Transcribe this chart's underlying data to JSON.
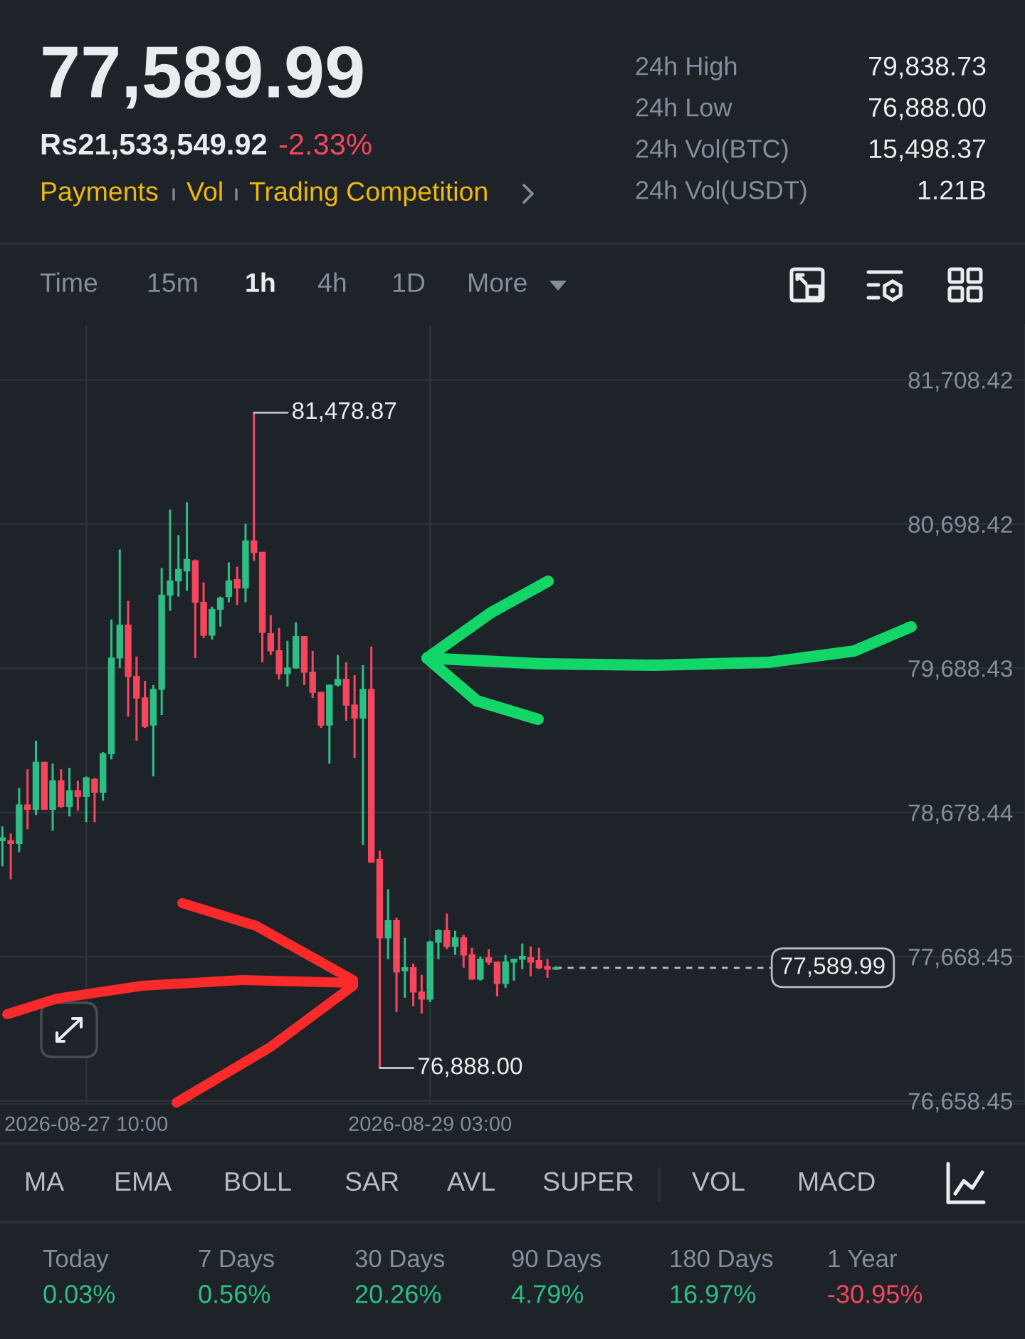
{
  "chart_data": {
    "type": "candlestick",
    "x": [
      "2026-08-27T00:00",
      "2026-08-27T01:00",
      "2026-08-27T02:00",
      "2026-08-27T03:00",
      "2026-08-27T04:00",
      "2026-08-27T05:00",
      "2026-08-27T06:00",
      "2026-08-27T07:00",
      "2026-08-27T08:00",
      "2026-08-27T09:00",
      "2026-08-27T10:00",
      "2026-08-27T11:00",
      "2026-08-27T12:00",
      "2026-08-27T13:00",
      "2026-08-27T14:00",
      "2026-08-27T15:00",
      "2026-08-27T16:00",
      "2026-08-27T17:00",
      "2026-08-27T18:00",
      "2026-08-27T19:00",
      "2026-08-27T20:00",
      "2026-08-27T21:00",
      "2026-08-27T22:00",
      "2026-08-27T23:00",
      "2026-08-28T00:00",
      "2026-08-28T01:00",
      "2026-08-28T02:00",
      "2026-08-28T03:00",
      "2026-08-28T04:00",
      "2026-08-28T05:00",
      "2026-08-28T06:00",
      "2026-08-28T07:00",
      "2026-08-28T08:00",
      "2026-08-28T09:00",
      "2026-08-28T10:00",
      "2026-08-28T11:00",
      "2026-08-28T12:00",
      "2026-08-28T13:00",
      "2026-08-28T14:00",
      "2026-08-28T15:00",
      "2026-08-28T16:00",
      "2026-08-28T17:00",
      "2026-08-28T18:00",
      "2026-08-28T19:00",
      "2026-08-28T20:00",
      "2026-08-28T21:00",
      "2026-08-28T22:00",
      "2026-08-28T23:00",
      "2026-08-29T00:00",
      "2026-08-29T01:00",
      "2026-08-29T02:00",
      "2026-08-29T03:00",
      "2026-08-29T04:00",
      "2026-08-29T05:00",
      "2026-08-29T06:00",
      "2026-08-29T07:00",
      "2026-08-29T08:00",
      "2026-08-29T09:00",
      "2026-08-29T10:00",
      "2026-08-29T11:00",
      "2026-08-29T12:00",
      "2026-08-29T13:00",
      "2026-08-29T14:00",
      "2026-08-29T15:00",
      "2026-08-29T16:00",
      "2026-08-29T17:00",
      "2026-08-29T18:00"
    ],
    "ohlc": [
      [
        78480,
        78580,
        78300,
        78500
      ],
      [
        78480,
        78530,
        78210,
        78460
      ],
      [
        78460,
        78850,
        78400,
        78730
      ],
      [
        78730,
        78980,
        78560,
        78700
      ],
      [
        78700,
        79180,
        78660,
        79030
      ],
      [
        79030,
        79030,
        78700,
        78700
      ],
      [
        78700,
        79020,
        78550,
        78900
      ],
      [
        78900,
        78980,
        78710,
        78720
      ],
      [
        78720,
        78990,
        78650,
        78830
      ],
      [
        78830,
        78900,
        78690,
        78790
      ],
      [
        78790,
        78930,
        78610,
        78920
      ],
      [
        78910,
        78920,
        78610,
        78820
      ],
      [
        78820,
        79100,
        78760,
        79090
      ],
      [
        79090,
        80030,
        79050,
        79760
      ],
      [
        79760,
        80520,
        79690,
        79990
      ],
      [
        79990,
        80160,
        79350,
        79630
      ],
      [
        79630,
        79770,
        79180,
        79480
      ],
      [
        79480,
        79600,
        79270,
        79280
      ],
      [
        79290,
        79570,
        78930,
        79540
      ],
      [
        79540,
        80390,
        79360,
        80200
      ],
      [
        80200,
        80800,
        80090,
        80300
      ],
      [
        80300,
        80620,
        80190,
        80380
      ],
      [
        80370,
        80850,
        80230,
        80450
      ],
      [
        80440,
        80450,
        79760,
        80150
      ],
      [
        80150,
        80290,
        79900,
        79920
      ],
      [
        79920,
        80120,
        79890,
        80100
      ],
      [
        80100,
        80190,
        79980,
        80180
      ],
      [
        80190,
        80430,
        80150,
        80300
      ],
      [
        80310,
        80400,
        80130,
        80250
      ],
      [
        80250,
        80700,
        80150,
        80580
      ],
      [
        80580,
        81478.87,
        80440,
        80500
      ],
      [
        80500,
        80500,
        79730,
        79940
      ],
      [
        79930,
        80060,
        79780,
        79810
      ],
      [
        79810,
        79970,
        79610,
        79650
      ],
      [
        79650,
        79880,
        79560,
        79690
      ],
      [
        79690,
        80010,
        79685,
        79910
      ],
      [
        79910,
        79910,
        79570,
        79660
      ],
      [
        79660,
        79810,
        79480,
        79520
      ],
      [
        79520,
        79520,
        79270,
        79290
      ],
      [
        79290,
        79570,
        79020,
        79570
      ],
      [
        79570,
        79780,
        79560,
        79610
      ],
      [
        79610,
        79730,
        79320,
        79430
      ],
      [
        79430,
        79640,
        79060,
        79340
      ],
      [
        79340,
        79710,
        78450,
        79540
      ],
      [
        79540,
        79840,
        78330,
        78330
      ],
      [
        78350,
        78410,
        76888.0,
        77800
      ],
      [
        77800,
        78140,
        77650,
        77920
      ],
      [
        77920,
        77940,
        77280,
        77560
      ],
      [
        77570,
        77800,
        77380,
        77590
      ],
      [
        77590,
        77620,
        77320,
        77420
      ],
      [
        77420,
        77540,
        77270,
        77370
      ],
      [
        77370,
        77780,
        77350,
        77770
      ],
      [
        77770,
        77860,
        77650,
        77850
      ],
      [
        77850,
        77970,
        77720,
        77740
      ],
      [
        77740,
        77850,
        77680,
        77800
      ],
      [
        77800,
        77820,
        77590,
        77680
      ],
      [
        77680,
        77730,
        77510,
        77510
      ],
      [
        77510,
        77670,
        77500,
        77650
      ],
      [
        77660,
        77720,
        77610,
        77630
      ],
      [
        77630,
        77630,
        77390,
        77480
      ],
      [
        77480,
        77680,
        77450,
        77630
      ],
      [
        77630,
        77650,
        77500,
        77650
      ],
      [
        77650,
        77760,
        77580,
        77670
      ],
      [
        77660,
        77740,
        77530,
        77630
      ],
      [
        77640,
        77730,
        77580,
        77590
      ],
      [
        77600,
        77650,
        77520,
        77580
      ],
      [
        77580,
        77600,
        77575,
        77589.99
      ]
    ],
    "colors": [
      "#2ebd85",
      "#f6465d",
      "#2ebd85",
      "#f6465d",
      "#2ebd85",
      "#f6465d",
      "#2ebd85",
      "#f6465d",
      "#2ebd85",
      "#f6465d",
      "#2ebd85",
      "#f6465d",
      "#2ebd85",
      "#2ebd85",
      "#2ebd85",
      "#f6465d",
      "#f6465d",
      "#f6465d",
      "#2ebd85",
      "#2ebd85",
      "#2ebd85",
      "#2ebd85",
      "#2ebd85",
      "#f6465d",
      "#f6465d",
      "#2ebd85",
      "#2ebd85",
      "#2ebd85",
      "#f6465d",
      "#2ebd85",
      "#f6465d",
      "#f6465d",
      "#f6465d",
      "#f6465d",
      "#2ebd85",
      "#2ebd85",
      "#f6465d",
      "#f6465d",
      "#f6465d",
      "#2ebd85",
      "#2ebd85",
      "#f6465d",
      "#f6465d",
      "#2ebd85",
      "#f6465d",
      "#f6465d",
      "#2ebd85",
      "#f6465d",
      "#2ebd85",
      "#f6465d",
      "#f6465d",
      "#2ebd85",
      "#2ebd85",
      "#f6465d",
      "#2ebd85",
      "#f6465d",
      "#f6465d",
      "#2ebd85",
      "#f6465d",
      "#f6465d",
      "#2ebd85",
      "#2ebd85",
      "#2ebd85",
      "#f6465d",
      "#f6465d",
      "#f6465d",
      "#2ebd85"
    ],
    "xlim": [
      "2026-08-26T23:43",
      "2026-09-01T01:57"
    ],
    "ylim": [
      76636,
      82094
    ],
    "xticks": [
      {
        "value": "2026-08-27T10:00",
        "label": "2026-08-27 10:00"
      },
      {
        "value": "2026-08-29T03:00",
        "label": "2026-08-29 03:00"
      }
    ],
    "yticks": [
      {
        "value": 81708.42,
        "label": "81,708.42"
      },
      {
        "value": 80698.42,
        "label": "80,698.42"
      },
      {
        "value": 79688.43,
        "label": "79,688.43"
      },
      {
        "value": 78678.44,
        "label": "78,678.44"
      },
      {
        "value": 77668.45,
        "label": "77,668.45"
      },
      {
        "value": 76658.45,
        "label": "76,658.45"
      }
    ],
    "grid": true,
    "ref_lines": [
      {
        "axis": "y",
        "value": 77589.99,
        "label": "77,589.99",
        "color": "#b7bdc6",
        "line_style": "dashed"
      }
    ],
    "annotations": [
      "77,589.99",
      "Rs21,533,549.92",
      "-2.33%",
      "Payments",
      "Vol",
      "Trading Competition",
      "24h High",
      "79,838.73",
      "24h Low",
      "76,888.00",
      "24h Vol(BTC)",
      "15,498.37",
      "24h Vol(USDT)",
      "1.21B",
      "Time",
      "15m",
      "1h",
      "4h",
      "1D",
      "More",
      {
        "text": "81,478.87",
        "x": "2026-08-28T06:00",
        "y": 81478.87
      },
      {
        "text": "76,888.00",
        "x": "2026-08-28T21:00",
        "y": 76888.0
      },
      "MA",
      "EMA",
      "BOLL",
      "SAR",
      "AVL",
      "SUPER",
      "VOL",
      "MACD",
      "Today",
      "0.03%",
      "7 Days",
      "0.56%",
      "30 Days",
      "20.26%",
      "90 Days",
      "4.79%",
      "180 Days",
      "16.97%",
      "1 Year",
      "-30.95%"
    ]
  }
}
